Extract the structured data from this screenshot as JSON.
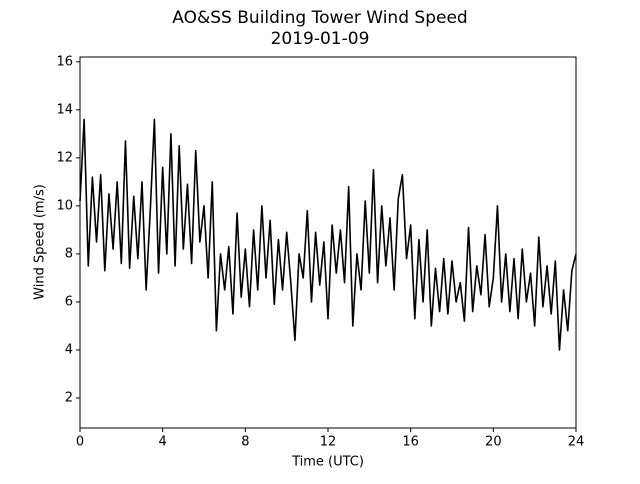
{
  "chart_data": {
    "type": "line",
    "title": "AO&SS Building Tower Wind Speed",
    "subtitle": "2019-01-09",
    "x_label": "Time (UTC)",
    "y_label": "Wind Speed (m/s)",
    "xlim": [
      0,
      24
    ],
    "xticks": [
      0,
      4,
      8,
      12,
      16,
      20,
      24
    ],
    "ylim": [
      0.75,
      16.2
    ],
    "yticks": [
      2,
      4,
      6,
      8,
      10,
      12,
      14,
      16
    ],
    "grid": false,
    "x": [
      0,
      0.2,
      0.4,
      0.6,
      0.8,
      1,
      1.2,
      1.4,
      1.6,
      1.8,
      2,
      2.2,
      2.4,
      2.6,
      2.8,
      3,
      3.2,
      3.4,
      3.6,
      3.8,
      4,
      4.2,
      4.4,
      4.6,
      4.8,
      5,
      5.2,
      5.4,
      5.6,
      5.8,
      6,
      6.2,
      6.4,
      6.6,
      6.8,
      7,
      7.2,
      7.4,
      7.6,
      7.8,
      8,
      8.2,
      8.4,
      8.6,
      8.8,
      9,
      9.2,
      9.4,
      9.6,
      9.8,
      10,
      10.2,
      10.4,
      10.6,
      10.8,
      11,
      11.2,
      11.4,
      11.6,
      11.8,
      12,
      12.2,
      12.4,
      12.6,
      12.8,
      13,
      13.2,
      13.4,
      13.6,
      13.8,
      14,
      14.2,
      14.4,
      14.6,
      14.8,
      15,
      15.2,
      15.4,
      15.6,
      15.8,
      16,
      16.2,
      16.4,
      16.6,
      16.8,
      17,
      17.2,
      17.4,
      17.6,
      17.8,
      18,
      18.2,
      18.4,
      18.6,
      18.8,
      19,
      19.2,
      19.4,
      19.6,
      19.8,
      20,
      20.2,
      20.4,
      20.6,
      20.8,
      21,
      21.2,
      21.4,
      21.6,
      21.8,
      22,
      22.2,
      22.4,
      22.6,
      22.8,
      23,
      23.2,
      23.4,
      23.6,
      23.8,
      24
    ],
    "series": [
      {
        "name": "Wind Speed",
        "color": "#000000",
        "values": [
          10.2,
          13.6,
          7.5,
          11.2,
          8.5,
          11.3,
          7.3,
          10.5,
          8.2,
          11.0,
          7.6,
          12.7,
          7.4,
          10.4,
          7.8,
          11.0,
          6.5,
          9.8,
          13.6,
          7.2,
          11.6,
          8.0,
          13.0,
          7.5,
          12.5,
          8.2,
          10.9,
          7.6,
          12.3,
          8.5,
          10.0,
          7.0,
          11.0,
          4.8,
          8.0,
          6.5,
          8.3,
          5.5,
          9.7,
          6.2,
          8.2,
          5.8,
          9.0,
          6.5,
          10.0,
          7.0,
          9.4,
          5.9,
          8.6,
          6.5,
          8.9,
          6.8,
          4.4,
          8.0,
          7.0,
          9.8,
          6.0,
          8.9,
          6.7,
          8.5,
          5.3,
          9.2,
          7.2,
          9.0,
          6.8,
          10.8,
          5.0,
          8.0,
          6.5,
          10.2,
          7.2,
          11.5,
          6.8,
          10.0,
          7.5,
          9.5,
          6.5,
          10.3,
          11.3,
          7.8,
          9.2,
          5.3,
          8.6,
          6.0,
          9.0,
          5.0,
          7.4,
          5.6,
          7.8,
          5.5,
          7.7,
          6.0,
          6.8,
          5.2,
          9.1,
          5.6,
          7.5,
          6.3,
          8.8,
          5.8,
          7.0,
          10.0,
          6.0,
          8.0,
          5.6,
          7.8,
          5.3,
          8.2,
          6.0,
          7.2,
          5.0,
          8.7,
          5.8,
          7.5,
          5.5,
          7.7,
          4.0,
          6.5,
          4.8,
          7.3,
          8.0
        ]
      }
    ]
  }
}
